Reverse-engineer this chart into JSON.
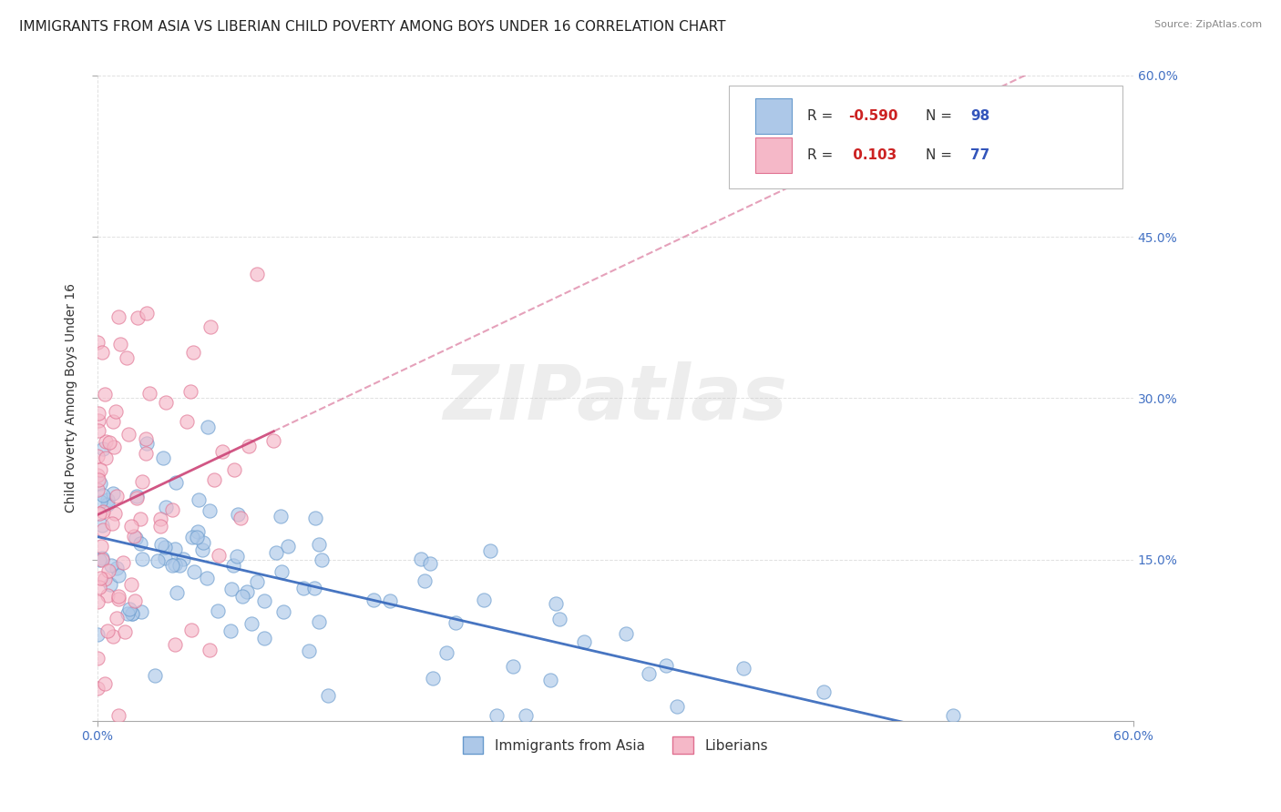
{
  "title": "IMMIGRANTS FROM ASIA VS LIBERIAN CHILD POVERTY AMONG BOYS UNDER 16 CORRELATION CHART",
  "source": "Source: ZipAtlas.com",
  "ylabel": "Child Poverty Among Boys Under 16",
  "x_tick_labels": [
    "0.0%",
    "60.0%"
  ],
  "y_tick_labels_right": [
    "15.0%",
    "30.0%",
    "45.0%",
    "60.0%"
  ],
  "series_asia": {
    "color": "#adc8e8",
    "edge_color": "#6699cc",
    "trend_color": "#3366bb",
    "R": -0.59,
    "N": 98
  },
  "series_liberian": {
    "color": "#f5b8c8",
    "edge_color": "#e07090",
    "trend_color": "#cc4477",
    "R": 0.103,
    "N": 77
  },
  "xlim": [
    0.0,
    0.6
  ],
  "ylim": [
    0.0,
    0.6
  ],
  "background_color": "#ffffff",
  "grid_color": "#cccccc",
  "watermark": "ZIPatlas",
  "title_fontsize": 11,
  "axis_label_fontsize": 10,
  "tick_fontsize": 10,
  "legend_R_color": "#cc2222",
  "legend_N_color": "#3355bb",
  "legend_text_color": "#333333",
  "right_tick_color": "#4472c4",
  "bottom_tick_color": "#4472c4"
}
